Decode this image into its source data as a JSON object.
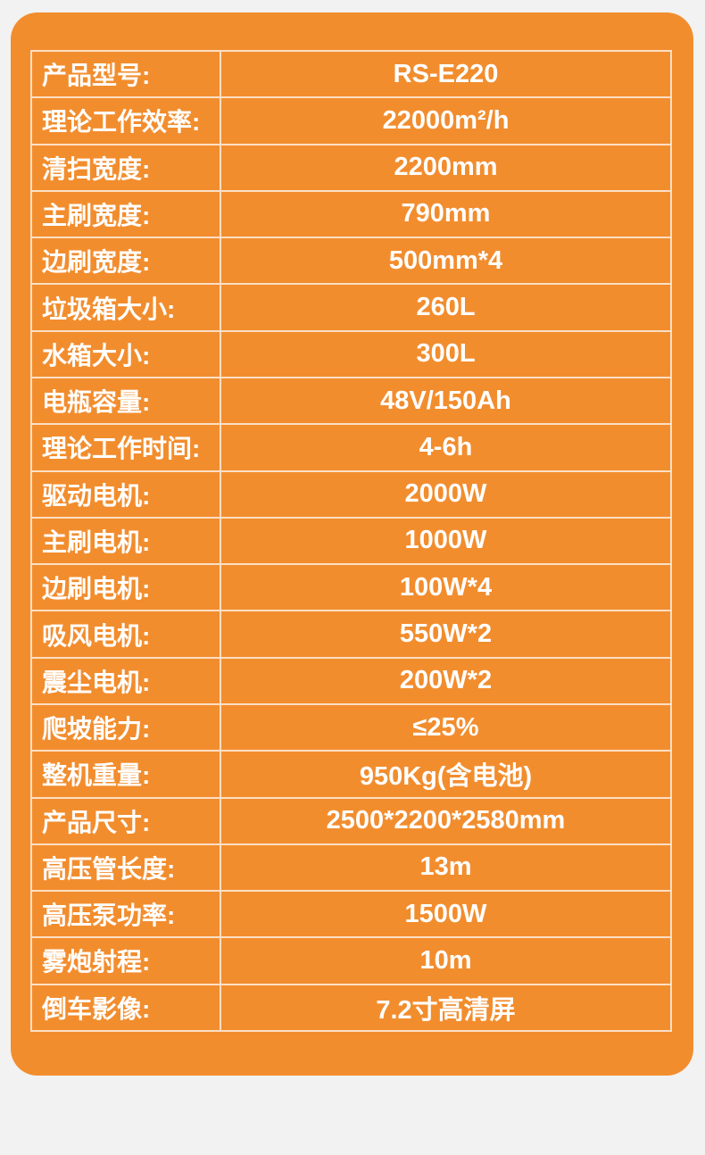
{
  "colors": {
    "page_background": "#F2F2F2",
    "panel_orange": "#F28D2E",
    "grid_line": "rgba(255,255,255,0.72)",
    "text": "#FFFFFF"
  },
  "table": {
    "rows": [
      {
        "label": "产品型号:",
        "value": "RS-E220"
      },
      {
        "label": "理论工作效率:",
        "value": "22000m²/h"
      },
      {
        "label": "清扫宽度:",
        "value": "2200mm"
      },
      {
        "label": "主刷宽度:",
        "value": "790mm"
      },
      {
        "label": "边刷宽度:",
        "value": "500mm*4"
      },
      {
        "label": "垃圾箱大小:",
        "value": "260L"
      },
      {
        "label": "水箱大小:",
        "value": "300L"
      },
      {
        "label": "电瓶容量:",
        "value": "48V/150Ah"
      },
      {
        "label": "理论工作时间:",
        "value": "4-6h"
      },
      {
        "label": "驱动电机:",
        "value": "2000W"
      },
      {
        "label": "主刷电机:",
        "value": "1000W"
      },
      {
        "label": "边刷电机:",
        "value": "100W*4"
      },
      {
        "label": "吸风电机:",
        "value": "550W*2"
      },
      {
        "label": "震尘电机:",
        "value": "200W*2"
      },
      {
        "label": "爬坡能力:",
        "value": "≤25%"
      },
      {
        "label": "整机重量:",
        "value": "950Kg(含电池)"
      },
      {
        "label": "产品尺寸:",
        "value": "2500*2200*2580mm"
      },
      {
        "label": "高压管长度:",
        "value": "13m"
      },
      {
        "label": "高压泵功率:",
        "value": "1500W"
      },
      {
        "label": "雾炮射程:",
        "value": "10m"
      },
      {
        "label": "倒车影像:",
        "value": "7.2寸高清屏"
      }
    ]
  }
}
